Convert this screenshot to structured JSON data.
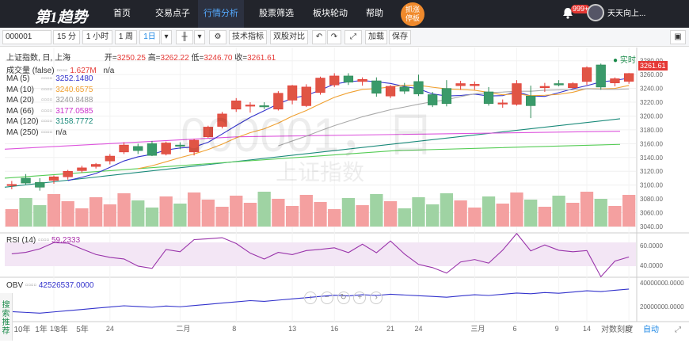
{
  "nav": {
    "logo": "第1趋势",
    "items": [
      {
        "label": "首页"
      },
      {
        "label": "交易点子"
      },
      {
        "label": "行情分析",
        "active": true
      },
      {
        "label": "股票筛选"
      },
      {
        "label": "板块轮动"
      },
      {
        "label": "帮助"
      }
    ],
    "promo": "抓涨\n停板",
    "badge": "999+",
    "user": "天天向上..."
  },
  "toolbar": {
    "code": "000001",
    "periods": [
      "15 分",
      "1 小时",
      "1 周",
      "1日"
    ],
    "indicator_btn": "技术指标",
    "compare_btn": "双股对比",
    "load_btn": "加载",
    "save_btn": "保存"
  },
  "legend": {
    "title": "上证指数, 日, 上海",
    "open_label": "开=",
    "open": "3250.25",
    "high_label": "高=",
    "high": "3262.22",
    "low_label": "低=",
    "low": "3246.70",
    "close_label": "收=",
    "close": "3261.61",
    "volume_label": "成交量 (false)",
    "volume": "1.627M",
    "na": "n/a",
    "realtime": "实时",
    "ma": [
      {
        "name": "MA (5)",
        "value": "3252.1480",
        "color": "#3333cc"
      },
      {
        "name": "MA (10)",
        "value": "3240.6575",
        "color": "#f0a030"
      },
      {
        "name": "MA (20)",
        "value": "3240.8488",
        "color": "#999999"
      },
      {
        "name": "MA (66)",
        "value": "3177.0585",
        "color": "#cc33cc"
      },
      {
        "name": "MA (120)",
        "value": "3158.7772",
        "color": "#1a8a7a"
      },
      {
        "name": "MA (250)",
        "value": "n/a",
        "color": "#333333"
      }
    ]
  },
  "watermark": {
    "code": "000001，日",
    "name": "上证指数"
  },
  "price_axis": {
    "ticks": [
      "3280.00",
      "3260.00",
      "3240.00",
      "3220.00",
      "3200.00",
      "3180.00",
      "3160.00",
      "3140.00",
      "3120.00",
      "3100.00",
      "3080.00",
      "3060.00",
      "3040.00"
    ],
    "last": "3261.61"
  },
  "rsi": {
    "label": "RSI (14)",
    "value": "59.2333",
    "ticks": [
      "60.0000",
      "40.0000"
    ]
  },
  "obv": {
    "label": "OBV",
    "value": "42526537.0000",
    "ticks": [
      "40000000.0000",
      "20000000.0000"
    ]
  },
  "x_axis": [
    "19",
    "24",
    "二月",
    "8",
    "13",
    "16",
    "21",
    "24",
    "三月",
    "6",
    "9",
    "14",
    "17"
  ],
  "sidebar": {
    "search": "搜索推荐"
  },
  "bottom": {
    "ranges": [
      "10年",
      "1年",
      "3年",
      "5年"
    ],
    "log": "对数刻度",
    "auto": "自动"
  },
  "chart_data": {
    "type": "candlestick",
    "candles": [
      {
        "o": 3100,
        "h": 3106,
        "l": 3094,
        "c": 3101
      },
      {
        "o": 3110,
        "h": 3116,
        "l": 3101,
        "c": 3103
      },
      {
        "o": 3104,
        "h": 3110,
        "l": 3092,
        "c": 3097
      },
      {
        "o": 3107,
        "h": 3114,
        "l": 3102,
        "c": 3112
      },
      {
        "o": 3112,
        "h": 3122,
        "l": 3108,
        "c": 3120
      },
      {
        "o": 3121,
        "h": 3128,
        "l": 3118,
        "c": 3125
      },
      {
        "o": 3127,
        "h": 3132,
        "l": 3124,
        "c": 3130
      },
      {
        "o": 3135,
        "h": 3145,
        "l": 3130,
        "c": 3142
      },
      {
        "o": 3148,
        "h": 3162,
        "l": 3145,
        "c": 3158
      },
      {
        "o": 3156,
        "h": 3160,
        "l": 3145,
        "c": 3150
      },
      {
        "o": 3160,
        "h": 3164,
        "l": 3142,
        "c": 3143
      },
      {
        "o": 3145,
        "h": 3163,
        "l": 3143,
        "c": 3161
      },
      {
        "o": 3158,
        "h": 3162,
        "l": 3152,
        "c": 3157
      },
      {
        "o": 3148,
        "h": 3167,
        "l": 3143,
        "c": 3165
      },
      {
        "o": 3170,
        "h": 3186,
        "l": 3168,
        "c": 3184
      },
      {
        "o": 3185,
        "h": 3206,
        "l": 3182,
        "c": 3203
      },
      {
        "o": 3210,
        "h": 3226,
        "l": 3206,
        "c": 3222
      },
      {
        "o": 3215,
        "h": 3220,
        "l": 3205,
        "c": 3216
      },
      {
        "o": 3215,
        "h": 3220,
        "l": 3210,
        "c": 3214
      },
      {
        "o": 3210,
        "h": 3236,
        "l": 3208,
        "c": 3233
      },
      {
        "o": 3223,
        "h": 3245,
        "l": 3217,
        "c": 3244
      },
      {
        "o": 3215,
        "h": 3246,
        "l": 3213,
        "c": 3242
      },
      {
        "o": 3234,
        "h": 3257,
        "l": 3231,
        "c": 3255
      },
      {
        "o": 3245,
        "h": 3262,
        "l": 3242,
        "c": 3258
      },
      {
        "o": 3258,
        "h": 3262,
        "l": 3245,
        "c": 3249
      },
      {
        "o": 3250,
        "h": 3256,
        "l": 3244,
        "c": 3253
      },
      {
        "o": 3251,
        "h": 3256,
        "l": 3228,
        "c": 3233
      },
      {
        "o": 3229,
        "h": 3245,
        "l": 3226,
        "c": 3243
      },
      {
        "o": 3242,
        "h": 3248,
        "l": 3232,
        "c": 3236
      },
      {
        "o": 3250,
        "h": 3260,
        "l": 3229,
        "c": 3232
      },
      {
        "o": 3231,
        "h": 3235,
        "l": 3213,
        "c": 3216
      },
      {
        "o": 3240,
        "h": 3252,
        "l": 3214,
        "c": 3218
      },
      {
        "o": 3244,
        "h": 3251,
        "l": 3238,
        "c": 3247
      },
      {
        "o": 3244,
        "h": 3250,
        "l": 3238,
        "c": 3246
      },
      {
        "o": 3235,
        "h": 3242,
        "l": 3215,
        "c": 3218
      },
      {
        "o": 3218,
        "h": 3224,
        "l": 3212,
        "c": 3219
      },
      {
        "o": 3217,
        "h": 3252,
        "l": 3215,
        "c": 3247
      },
      {
        "o": 3229,
        "h": 3244,
        "l": 3197,
        "c": 3215
      },
      {
        "o": 3241,
        "h": 3248,
        "l": 3235,
        "c": 3243
      },
      {
        "o": 3247,
        "h": 3252,
        "l": 3243,
        "c": 3245
      },
      {
        "o": 3241,
        "h": 3249,
        "l": 3240,
        "c": 3247
      },
      {
        "o": 3250,
        "h": 3272,
        "l": 3245,
        "c": 3270
      },
      {
        "o": 3274,
        "h": 3276,
        "l": 3238,
        "c": 3242
      },
      {
        "o": 3248,
        "h": 3256,
        "l": 3243,
        "c": 3254
      },
      {
        "o": 3250.25,
        "h": 3262.22,
        "l": 3246.7,
        "c": 3261.61
      }
    ]
  }
}
